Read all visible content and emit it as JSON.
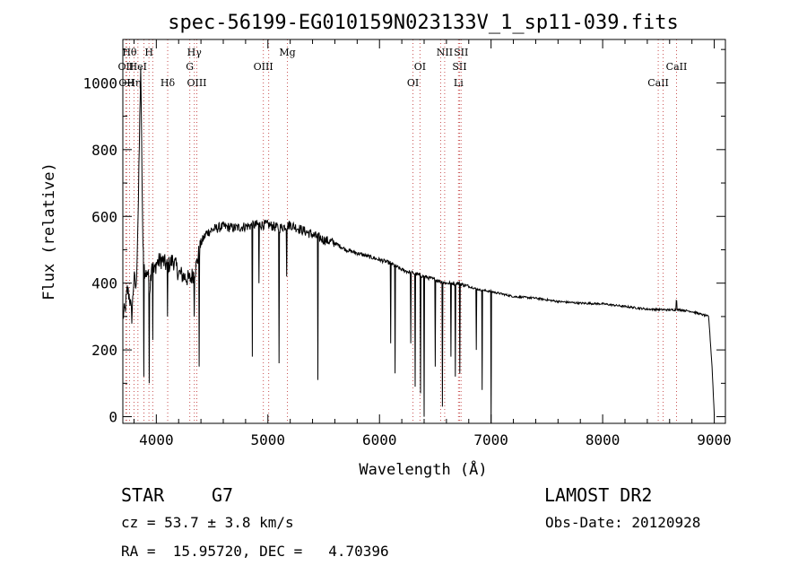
{
  "chart_data": {
    "type": "line",
    "title": "spec-56199-EG010159N023133V_1_sp11-039.fits",
    "xlabel": "Wavelength (Å)",
    "ylabel": "Flux (relative)",
    "xlim": [
      3700,
      9100
    ],
    "ylim": [
      -20,
      1130
    ],
    "x_ticks": [
      4000,
      5000,
      6000,
      7000,
      8000,
      9000
    ],
    "y_ticks": [
      0,
      200,
      400,
      600,
      800,
      1000
    ],
    "grid": false,
    "line_color": "#000000",
    "marker_line_color": "#c85050",
    "series": [
      {
        "x": [
          3700,
          3720,
          3740,
          3760,
          3780,
          3800,
          3820,
          3840,
          3860,
          3880,
          3900,
          3920,
          3940,
          3960,
          3980,
          4000,
          4050,
          4100,
          4150,
          4200,
          4250,
          4300,
          4350,
          4400,
          4450,
          4500,
          4600,
          4700,
          4800,
          4900,
          5000,
          5100,
          5200,
          5300,
          5400,
          5500,
          5600,
          5700,
          5800,
          5900,
          6000,
          6100,
          6200,
          6300,
          6400,
          6500,
          6600,
          6700,
          6800,
          6900,
          7000,
          7200,
          7400,
          7600,
          7800,
          8000,
          8200,
          8400,
          8600,
          8700,
          8800,
          8950,
          8980,
          9000
        ],
        "y": [
          300,
          320,
          380,
          360,
          300,
          420,
          380,
          650,
          1050,
          500,
          420,
          440,
          380,
          470,
          430,
          460,
          470,
          450,
          470,
          430,
          420,
          410,
          440,
          520,
          550,
          560,
          570,
          565,
          570,
          575,
          575,
          565,
          575,
          560,
          545,
          530,
          520,
          500,
          490,
          480,
          470,
          460,
          440,
          430,
          420,
          410,
          400,
          400,
          390,
          380,
          375,
          360,
          355,
          345,
          340,
          338,
          330,
          322,
          320,
          320,
          315,
          300,
          150,
          5
        ]
      }
    ],
    "dips": [
      {
        "x": 3890,
        "y": 120
      },
      {
        "x": 3935,
        "y": 100
      },
      {
        "x": 3970,
        "y": 230
      },
      {
        "x": 4100,
        "y": 300
      },
      {
        "x": 4340,
        "y": 300
      },
      {
        "x": 4383,
        "y": 150
      },
      {
        "x": 4861,
        "y": 180
      },
      {
        "x": 4920,
        "y": 400
      },
      {
        "x": 5100,
        "y": 160
      },
      {
        "x": 5170,
        "y": 420
      },
      {
        "x": 5450,
        "y": 110
      },
      {
        "x": 6100,
        "y": 220
      },
      {
        "x": 6140,
        "y": 130
      },
      {
        "x": 6280,
        "y": 220
      },
      {
        "x": 6320,
        "y": 90
      },
      {
        "x": 6370,
        "y": 70
      },
      {
        "x": 6400,
        "y": 0
      },
      {
        "x": 6500,
        "y": 150
      },
      {
        "x": 6563,
        "y": 30
      },
      {
        "x": 6640,
        "y": 180
      },
      {
        "x": 6680,
        "y": 120
      },
      {
        "x": 6720,
        "y": 130
      },
      {
        "x": 6870,
        "y": 200
      },
      {
        "x": 6920,
        "y": 80
      },
      {
        "x": 7000,
        "y": -20
      }
    ],
    "line_markers": [
      {
        "x": 3727,
        "label": "OII",
        "row": 1
      },
      {
        "x": 3734,
        "label": "OII",
        "row": 2
      },
      {
        "x": 3760,
        "label": "Hθ",
        "row": 0
      },
      {
        "x": 3800,
        "label": "Hη",
        "row": 2
      },
      {
        "x": 3835,
        "label": "HeI",
        "row": 1
      },
      {
        "x": 3889,
        "label": "",
        "row": -1
      },
      {
        "x": 3934,
        "label": "H",
        "row": 0
      },
      {
        "x": 3968,
        "label": "",
        "row": -1
      },
      {
        "x": 4102,
        "label": "Hδ",
        "row": 2
      },
      {
        "x": 4300,
        "label": "G",
        "row": 1
      },
      {
        "x": 4341,
        "label": "Hγ",
        "row": 0
      },
      {
        "x": 4363,
        "label": "OIII",
        "row": 2
      },
      {
        "x": 4959,
        "label": "OIII",
        "row": 1
      },
      {
        "x": 5007,
        "label": "",
        "row": -1
      },
      {
        "x": 5175,
        "label": "Mg",
        "row": 0
      },
      {
        "x": 6300,
        "label": "OI",
        "row": 2
      },
      {
        "x": 6363,
        "label": "OI",
        "row": 1
      },
      {
        "x": 6548,
        "label": "",
        "row": -1
      },
      {
        "x": 6584,
        "label": "NII",
        "row": 0
      },
      {
        "x": 6708,
        "label": "Li",
        "row": 2
      },
      {
        "x": 6717,
        "label": "SII",
        "row": 1
      },
      {
        "x": 6731,
        "label": "SII",
        "row": 0
      },
      {
        "x": 8498,
        "label": "CaII",
        "row": 2
      },
      {
        "x": 8542,
        "label": "",
        "row": -1
      },
      {
        "x": 8662,
        "label": "CaII",
        "row": 1
      }
    ]
  },
  "info": {
    "class_label": "STAR",
    "subclass": "G7",
    "survey": "LAMOST DR2",
    "cz": "cz = 53.7 ± 3.8 km/s",
    "obs_date": "Obs-Date: 20120928",
    "coords": "RA =  15.95720, DEC =   4.70396"
  }
}
